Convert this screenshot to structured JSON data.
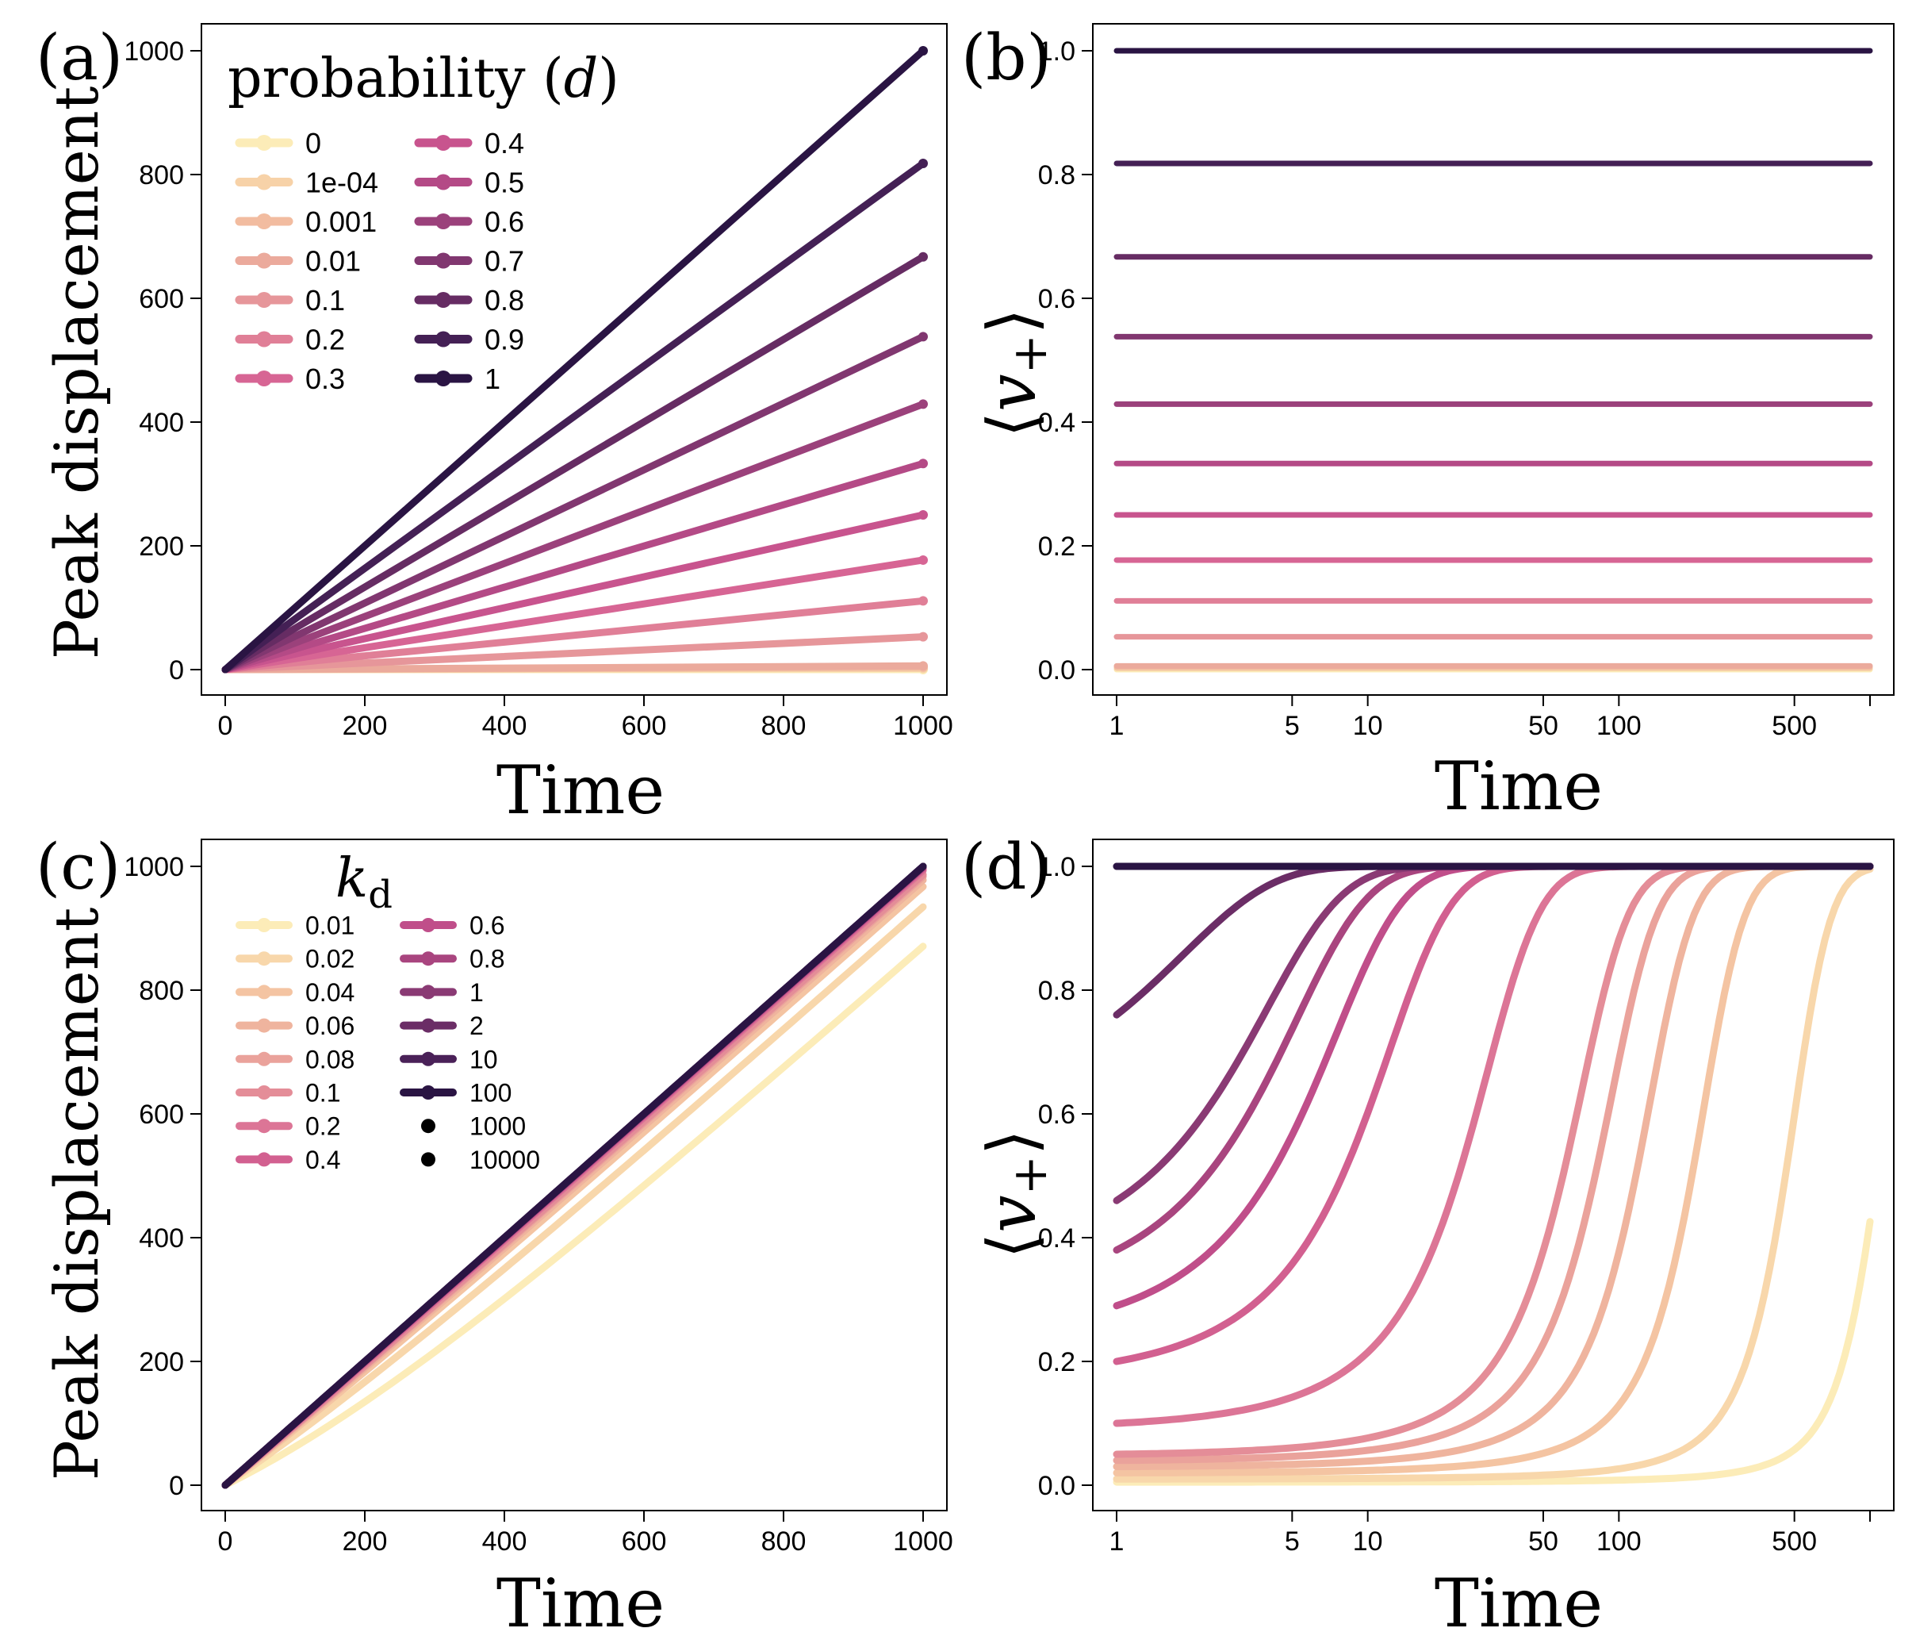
{
  "colors": {
    "axis": "#000000",
    "palette_a": [
      "#fcecb8",
      "#f7d2a8",
      "#f2bca0",
      "#ebaa9c",
      "#e6969a",
      "#e07f97",
      "#d76594",
      "#c8548e",
      "#b44a86",
      "#9b417b",
      "#813770",
      "#662c63",
      "#442055",
      "#2a1443"
    ],
    "palette_c": [
      "#fcecb8",
      "#f8d7ab",
      "#f4c4a2",
      "#efb49e",
      "#eaa29b",
      "#e48d98",
      "#dc7596",
      "#d26090",
      "#c04e8a",
      "#a9457f",
      "#8a3a74",
      "#6b2d66",
      "#4a2158",
      "#2a1443"
    ]
  },
  "chart_data": [
    {
      "panel": "(a)",
      "type": "line",
      "xscale": "linear",
      "xlabel": "Time",
      "ylabel": "Peak displacement",
      "xlim": [
        0,
        1000
      ],
      "ylim": [
        0,
        1000
      ],
      "xticks": [
        0,
        200,
        400,
        600,
        800,
        1000
      ],
      "yticks": [
        0,
        200,
        400,
        600,
        800,
        1000
      ],
      "legend_title": "probability (d)",
      "legend_title_text": "probability (",
      "legend_title_var": "d",
      "legend_title_close": ")",
      "legend_columns": [
        [
          "0",
          "1e-04",
          "0.001",
          "0.01",
          "0.1",
          "0.2",
          "0.3"
        ],
        [
          "0.4",
          "0.5",
          "0.6",
          "0.7",
          "0.8",
          "0.9",
          "1"
        ]
      ],
      "series": [
        {
          "name": "0",
          "slope": 0
        },
        {
          "name": "1e-04",
          "slope": 0.002
        },
        {
          "name": "0.001",
          "slope": 0.004
        },
        {
          "name": "0.01",
          "slope": 0.006
        },
        {
          "name": "0.1",
          "slope": 0.053
        },
        {
          "name": "0.2",
          "slope": 0.111
        },
        {
          "name": "0.3",
          "slope": 0.177
        },
        {
          "name": "0.4",
          "slope": 0.25
        },
        {
          "name": "0.5",
          "slope": 0.333
        },
        {
          "name": "0.6",
          "slope": 0.429
        },
        {
          "name": "0.7",
          "slope": 0.538
        },
        {
          "name": "0.8",
          "slope": 0.667
        },
        {
          "name": "0.9",
          "slope": 0.818
        },
        {
          "name": "1",
          "slope": 1.0
        }
      ]
    },
    {
      "panel": "(b)",
      "type": "line",
      "xscale": "log",
      "xlabel": "Time",
      "ylabel": "⟨v+⟩",
      "xlim": [
        1,
        1000
      ],
      "ylim": [
        0,
        1
      ],
      "xticks": [
        1,
        5,
        10,
        50,
        100,
        500,
        1000
      ],
      "xticklabels": [
        "1",
        "5",
        "10",
        "50",
        "100",
        "500",
        ""
      ],
      "yticks": [
        0.0,
        0.2,
        0.4,
        0.6,
        0.8,
        1.0
      ],
      "yticklabels": [
        "0.0",
        "0.2",
        "0.4",
        "0.6",
        "0.8",
        "1.0"
      ],
      "series_values": [
        0,
        0.002,
        0.004,
        0.006,
        0.053,
        0.111,
        0.177,
        0.25,
        0.333,
        0.429,
        0.538,
        0.667,
        0.818,
        1.0
      ]
    },
    {
      "panel": "(c)",
      "type": "line",
      "xscale": "linear",
      "xlabel": "Time",
      "ylabel": "Peak displacement",
      "xlim": [
        0,
        1000
      ],
      "ylim": [
        0,
        1000
      ],
      "xticks": [
        0,
        200,
        400,
        600,
        800,
        1000
      ],
      "yticks": [
        0,
        200,
        400,
        600,
        800,
        1000
      ],
      "legend_title": "kd",
      "legend_title_main": "k",
      "legend_title_sub": "d",
      "legend_columns": [
        [
          "0.01",
          "0.02",
          "0.04",
          "0.06",
          "0.08",
          "0.1",
          "0.2",
          "0.4"
        ],
        [
          "0.6",
          "0.8",
          "1",
          "2",
          "10",
          "100",
          "1000",
          "10000"
        ]
      ],
      "series": [
        {
          "name": "0.01",
          "end": 866
        },
        {
          "name": "0.02",
          "end": 932
        },
        {
          "name": "0.04",
          "end": 966
        },
        {
          "name": "0.06",
          "end": 977
        },
        {
          "name": "0.08",
          "end": 983
        },
        {
          "name": "0.1",
          "end": 986
        },
        {
          "name": "0.2",
          "end": 993
        },
        {
          "name": "0.4",
          "end": 996
        },
        {
          "name": "0.6",
          "end": 998
        },
        {
          "name": "0.8",
          "end": 999
        },
        {
          "name": "1",
          "end": 999
        },
        {
          "name": "2",
          "end": 1000
        },
        {
          "name": "10",
          "end": 1000
        },
        {
          "name": "100",
          "end": 1000
        },
        {
          "name": "1000",
          "end": 1000
        },
        {
          "name": "10000",
          "end": 1000
        }
      ]
    },
    {
      "panel": "(d)",
      "type": "line",
      "xscale": "log",
      "xlabel": "Time",
      "ylabel": "⟨v+⟩",
      "xlim": [
        1,
        1000
      ],
      "ylim": [
        0,
        1
      ],
      "xticks": [
        1,
        5,
        10,
        50,
        100,
        500,
        1000
      ],
      "xticklabels": [
        "1",
        "5",
        "10",
        "50",
        "100",
        "500",
        ""
      ],
      "yticks": [
        0.0,
        0.2,
        0.4,
        0.6,
        0.8,
        1.0
      ],
      "yticklabels": [
        "0.0",
        "0.2",
        "0.4",
        "0.6",
        "0.8",
        "1.0"
      ],
      "series": [
        {
          "name": "0.01",
          "start": 0.005
        },
        {
          "name": "0.02",
          "start": 0.01
        },
        {
          "name": "0.04",
          "start": 0.02
        },
        {
          "name": "0.06",
          "start": 0.03
        },
        {
          "name": "0.08",
          "start": 0.04
        },
        {
          "name": "0.1",
          "start": 0.05
        },
        {
          "name": "0.2",
          "start": 0.1
        },
        {
          "name": "0.4",
          "start": 0.2
        },
        {
          "name": "0.6",
          "start": 0.29
        },
        {
          "name": "0.8",
          "start": 0.38
        },
        {
          "name": "1",
          "start": 0.46
        },
        {
          "name": "2",
          "start": 0.76
        },
        {
          "name": "10",
          "start": 1.0
        },
        {
          "name": "100",
          "start": 1.0
        },
        {
          "name": "1000",
          "start": 1.0
        },
        {
          "name": "10000",
          "start": 1.0
        }
      ]
    }
  ]
}
